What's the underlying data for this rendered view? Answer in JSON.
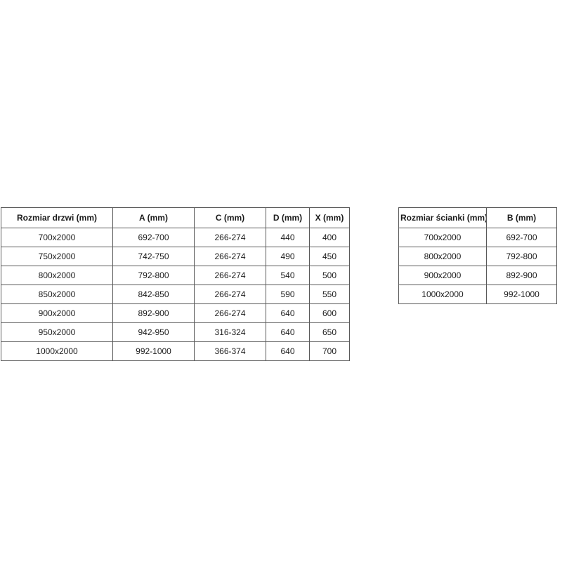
{
  "colors": {
    "background": "#ffffff",
    "table_border": "#595959",
    "text": "#1a1a1a"
  },
  "chart_data": [
    {
      "type": "table",
      "title": "",
      "headers": [
        "Rozmiar drzwi (mm)",
        "A (mm)",
        "C (mm)",
        "D (mm)",
        "X (mm)"
      ],
      "rows": [
        [
          "700x2000",
          "692-700",
          "266-274",
          "440",
          "400"
        ],
        [
          "750x2000",
          "742-750",
          "266-274",
          "490",
          "450"
        ],
        [
          "800x2000",
          "792-800",
          "266-274",
          "540",
          "500"
        ],
        [
          "850x2000",
          "842-850",
          "266-274",
          "590",
          "550"
        ],
        [
          "900x2000",
          "892-900",
          "266-274",
          "640",
          "600"
        ],
        [
          "950x2000",
          "942-950",
          "316-324",
          "640",
          "650"
        ],
        [
          "1000x2000",
          "992-1000",
          "366-374",
          "640",
          "700"
        ]
      ]
    },
    {
      "type": "table",
      "title": "",
      "headers": [
        "Rozmiar ścianki (mm)",
        "B (mm)"
      ],
      "rows": [
        [
          "700x2000",
          "692-700"
        ],
        [
          "800x2000",
          "792-800"
        ],
        [
          "900x2000",
          "892-900"
        ],
        [
          "1000x2000",
          "992-1000"
        ]
      ]
    }
  ]
}
